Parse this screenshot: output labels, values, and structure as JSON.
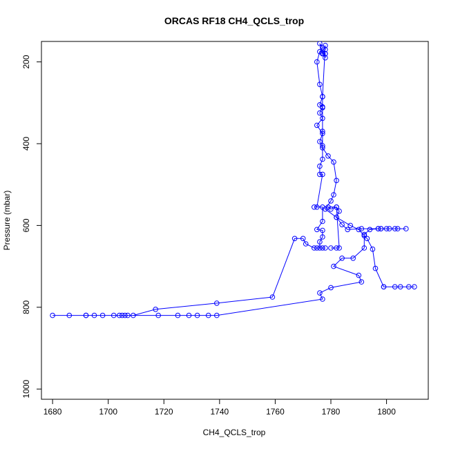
{
  "chart_data": {
    "type": "line",
    "title": "ORCAS RF18 CH4_QCLS_trop",
    "xlabel": "CH4_QCLS_trop",
    "ylabel": "Pressure (mbar)",
    "xlim": [
      1676,
      1815
    ],
    "ylim": [
      1025,
      150
    ],
    "y_reversed": true,
    "x_ticks": [
      1680,
      1700,
      1720,
      1740,
      1760,
      1780,
      1800
    ],
    "x_tick_labels": [
      "1680",
      "1700",
      "1720",
      "1740",
      "1760",
      "1780",
      "1800"
    ],
    "y_ticks": [
      200,
      400,
      600,
      800,
      1000
    ],
    "y_tick_labels": [
      "200",
      "400",
      "600",
      "800",
      "1000"
    ],
    "grid": false,
    "legend": "none",
    "series_color": "#0000ff",
    "marker": "open-circle",
    "points": [
      [
        1810,
        750
      ],
      [
        1808,
        750
      ],
      [
        1805,
        750
      ],
      [
        1803,
        750
      ],
      [
        1799,
        750
      ],
      [
        1799,
        750
      ],
      [
        1796,
        705
      ],
      [
        1795,
        658
      ],
      [
        1793,
        632
      ],
      [
        1792,
        625
      ],
      [
        1790,
        610
      ],
      [
        1787,
        600
      ],
      [
        1782,
        580
      ],
      [
        1778,
        560
      ],
      [
        1780,
        540
      ],
      [
        1781,
        525
      ],
      [
        1782,
        490
      ],
      [
        1781,
        445
      ],
      [
        1779,
        430
      ],
      [
        1777,
        410
      ],
      [
        1776,
        395
      ],
      [
        1777,
        375
      ],
      [
        1775,
        355
      ],
      [
        1777,
        338
      ],
      [
        1776,
        325
      ],
      [
        1777,
        310
      ],
      [
        1776,
        305
      ],
      [
        1777,
        285
      ],
      [
        1776,
        255
      ],
      [
        1775,
        200
      ],
      [
        1776,
        175
      ],
      [
        1777,
        165
      ],
      [
        1776,
        155
      ],
      [
        1777,
        180
      ],
      [
        1778,
        180
      ],
      [
        1778,
        190
      ],
      [
        1778,
        180
      ],
      [
        1777,
        178
      ],
      [
        1778,
        170
      ],
      [
        1778,
        160
      ],
      [
        1777,
        285
      ],
      [
        1777,
        312
      ],
      [
        1777,
        370
      ],
      [
        1777,
        405
      ],
      [
        1777,
        438
      ],
      [
        1776,
        455
      ],
      [
        1776,
        475
      ],
      [
        1777,
        475
      ],
      [
        1775,
        555
      ],
      [
        1774,
        555
      ],
      [
        1777,
        555
      ],
      [
        1777,
        590
      ],
      [
        1775,
        610
      ],
      [
        1777,
        612
      ],
      [
        1777,
        628
      ],
      [
        1776,
        640
      ],
      [
        1776,
        655
      ],
      [
        1777,
        655
      ],
      [
        1778,
        655
      ],
      [
        1775,
        655
      ],
      [
        1774,
        655
      ],
      [
        1771,
        645
      ],
      [
        1770,
        632
      ],
      [
        1767,
        632
      ],
      [
        1759,
        775
      ],
      [
        1739,
        790
      ],
      [
        1717,
        805
      ],
      [
        1709,
        820
      ],
      [
        1706,
        820
      ],
      [
        1704,
        820
      ],
      [
        1702,
        820
      ],
      [
        1698,
        820
      ],
      [
        1695,
        820
      ],
      [
        1692,
        820
      ],
      [
        1686,
        820
      ],
      [
        1680,
        820
      ],
      [
        1692,
        820
      ],
      [
        1705,
        820
      ],
      [
        1707,
        820
      ],
      [
        1718,
        820
      ],
      [
        1725,
        820
      ],
      [
        1729,
        820
      ],
      [
        1732,
        820
      ],
      [
        1736,
        820
      ],
      [
        1739,
        820
      ],
      [
        1777,
        780
      ],
      [
        1776,
        765
      ],
      [
        1780,
        752
      ],
      [
        1791,
        738
      ],
      [
        1790,
        722
      ],
      [
        1781,
        700
      ],
      [
        1784,
        680
      ],
      [
        1788,
        680
      ],
      [
        1792,
        655
      ],
      [
        1792,
        622
      ],
      [
        1794,
        610
      ],
      [
        1797,
        608
      ],
      [
        1798,
        608
      ],
      [
        1800,
        608
      ],
      [
        1803,
        608
      ],
      [
        1804,
        608
      ],
      [
        1807,
        608
      ],
      [
        1801,
        608
      ],
      [
        1798,
        608
      ],
      [
        1797,
        608
      ],
      [
        1791,
        608
      ],
      [
        1786,
        610
      ],
      [
        1784,
        598
      ],
      [
        1782,
        580
      ],
      [
        1783,
        565
      ],
      [
        1782,
        555
      ],
      [
        1780,
        560
      ],
      [
        1779,
        555
      ],
      [
        1782,
        555
      ],
      [
        1783,
        655
      ],
      [
        1782,
        655
      ],
      [
        1780,
        655
      ]
    ]
  }
}
